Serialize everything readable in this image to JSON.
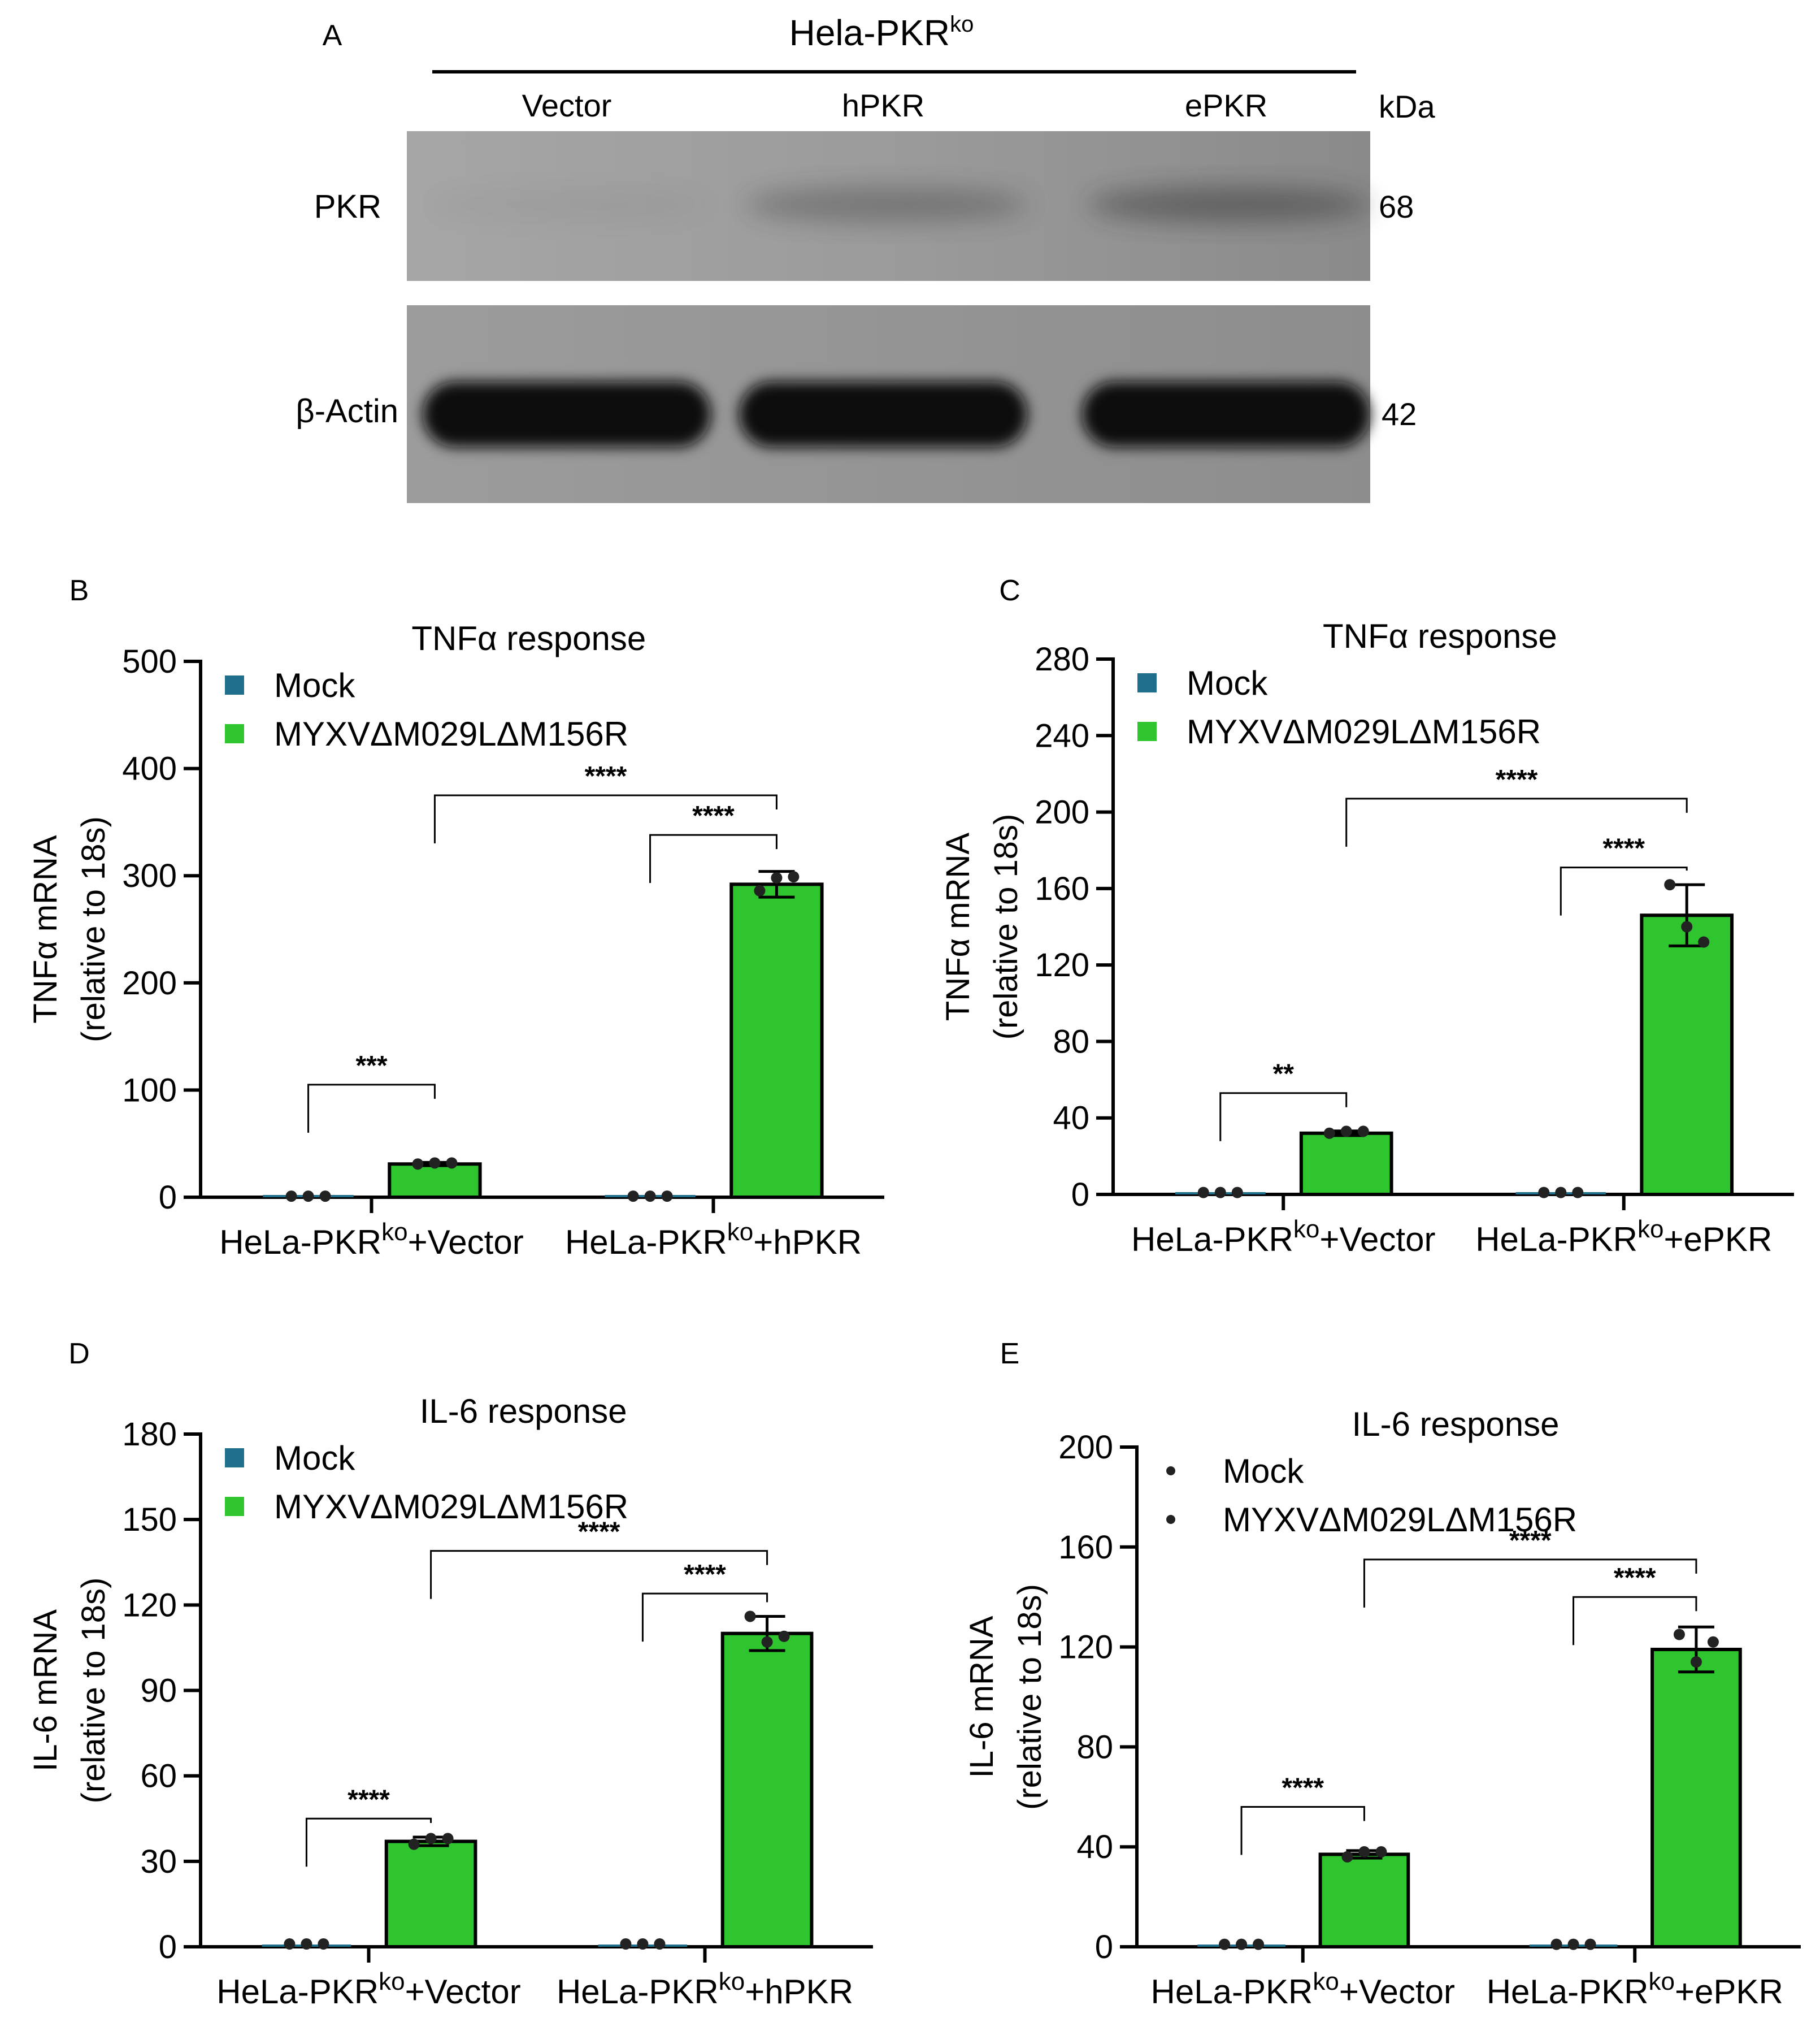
{
  "western_blot": {
    "panel_label": "A",
    "cell_line": "Hela-PKR",
    "cell_line_sup": "ko",
    "lanes": [
      "Vector",
      "hPKR",
      "ePKR"
    ],
    "unit_label": "kDa",
    "rows": [
      {
        "name": "PKR",
        "kda": "68",
        "band_intensity": [
          0.04,
          0.35,
          0.5
        ]
      },
      {
        "name": "β-Actin",
        "kda": "42",
        "band_intensity": [
          1.0,
          1.0,
          1.0
        ]
      }
    ],
    "colors": {
      "membrane": "#9a9a9a",
      "band": "#111111"
    }
  },
  "chart_data": [
    {
      "panel_label": "B",
      "type": "bar",
      "title": "TNFα response",
      "ylabel_line1": "TNFα mRNA",
      "ylabel_line2": "(relative to 18s)",
      "ylim": [
        0,
        500
      ],
      "yticks": [
        0,
        100,
        200,
        300,
        400,
        500
      ],
      "categories": [
        {
          "base": "HeLa-PKR",
          "sup": "ko",
          "suffix": "+Vector"
        },
        {
          "base": "HeLa-PKR",
          "sup": "ko",
          "suffix": "+hPKR"
        }
      ],
      "legend": {
        "style": "square"
      },
      "series": [
        {
          "name": "Mock",
          "color": "#1f6e8c",
          "values": [
            1,
            1
          ],
          "points": [
            [
              1,
              1,
              1
            ],
            [
              1,
              1,
              1
            ]
          ],
          "err": [
            0,
            0
          ]
        },
        {
          "name": "MYXVΔM029LΔM156R",
          "color": "#2ec52e",
          "values": [
            31,
            292
          ],
          "points": [
            [
              31,
              32,
              32
            ],
            [
              286,
              298,
              299
            ]
          ],
          "err": [
            1.5,
            12
          ]
        }
      ],
      "brackets": [
        {
          "from": [
            0,
            0
          ],
          "to": [
            0,
            1
          ],
          "label": "***",
          "y": 105
        },
        {
          "from": [
            1,
            0
          ],
          "to": [
            1,
            1
          ],
          "label": "****",
          "y": 338
        },
        {
          "from": [
            0,
            1
          ],
          "to": [
            1,
            1
          ],
          "label": "****",
          "y": 375
        }
      ]
    },
    {
      "panel_label": "C",
      "type": "bar",
      "title": "TNFα response",
      "ylabel_line1": "TNFα mRNA",
      "ylabel_line2": "(relative to 18s)",
      "ylim": [
        0,
        280
      ],
      "yticks": [
        0,
        40,
        80,
        120,
        160,
        200,
        240,
        280
      ],
      "categories": [
        {
          "base": "HeLa-PKR",
          "sup": "ko",
          "suffix": "+Vector"
        },
        {
          "base": "HeLa-PKR",
          "sup": "ko",
          "suffix": "+ePKR"
        }
      ],
      "legend": {
        "style": "square"
      },
      "series": [
        {
          "name": "Mock",
          "color": "#1f6e8c",
          "values": [
            1,
            1
          ],
          "points": [
            [
              1,
              1,
              1
            ],
            [
              1,
              1,
              1
            ]
          ],
          "err": [
            0,
            0
          ]
        },
        {
          "name": "MYXVΔM029LΔM156R",
          "color": "#2ec52e",
          "values": [
            32,
            146
          ],
          "points": [
            [
              32,
              33,
              33
            ],
            [
              162,
              140,
              132
            ]
          ],
          "err": [
            1.2,
            16
          ]
        }
      ],
      "brackets": [
        {
          "from": [
            0,
            0
          ],
          "to": [
            0,
            1
          ],
          "label": "**",
          "y": 53
        },
        {
          "from": [
            1,
            0
          ],
          "to": [
            1,
            1
          ],
          "label": "****",
          "y": 171
        },
        {
          "from": [
            0,
            1
          ],
          "to": [
            1,
            1
          ],
          "label": "****",
          "y": 207
        }
      ]
    },
    {
      "panel_label": "D",
      "type": "bar",
      "title": "IL-6 response",
      "ylabel_line1": "IL-6 mRNA",
      "ylabel_line2": "(relative to 18s)",
      "ylim": [
        0,
        180
      ],
      "yticks": [
        0,
        30,
        60,
        90,
        120,
        150,
        180
      ],
      "categories": [
        {
          "base": "HeLa-PKR",
          "sup": "ko",
          "suffix": "+Vector"
        },
        {
          "base": "HeLa-PKR",
          "sup": "ko",
          "suffix": "+hPKR"
        }
      ],
      "legend": {
        "style": "square"
      },
      "series": [
        {
          "name": "Mock",
          "color": "#1f6e8c",
          "values": [
            1,
            1
          ],
          "points": [
            [
              1,
              1,
              1
            ],
            [
              1,
              1,
              1
            ]
          ],
          "err": [
            0,
            0
          ]
        },
        {
          "name": "MYXVΔM029LΔM156R",
          "color": "#2ec52e",
          "values": [
            37,
            110
          ],
          "points": [
            [
              36,
              38,
              38
            ],
            [
              116,
              107,
              109
            ]
          ],
          "err": [
            1.5,
            6
          ]
        }
      ],
      "brackets": [
        {
          "from": [
            0,
            0
          ],
          "to": [
            0,
            1
          ],
          "label": "****",
          "y": 45
        },
        {
          "from": [
            1,
            0
          ],
          "to": [
            1,
            1
          ],
          "label": "****",
          "y": 124
        },
        {
          "from": [
            0,
            1
          ],
          "to": [
            1,
            1
          ],
          "label": "****",
          "y": 139
        }
      ]
    },
    {
      "panel_label": "E",
      "type": "bar",
      "title": "IL-6 response",
      "ylabel_line1": "IL-6 mRNA",
      "ylabel_line2": "(relative to 18s)",
      "ylim": [
        0,
        200
      ],
      "yticks": [
        0,
        40,
        80,
        120,
        160,
        200
      ],
      "categories": [
        {
          "base": "HeLa-PKR",
          "sup": "ko",
          "suffix": "+Vector"
        },
        {
          "base": "HeLa-PKR",
          "sup": "ko",
          "suffix": "+ePKR"
        }
      ],
      "legend": {
        "style": "dot"
      },
      "series": [
        {
          "name": "Mock",
          "color": "#1f6e8c",
          "values": [
            1,
            1
          ],
          "points": [
            [
              1,
              1,
              1
            ],
            [
              1,
              1,
              1
            ]
          ],
          "err": [
            0,
            0
          ]
        },
        {
          "name": "MYXVΔM029LΔM156R",
          "color": "#2ec52e",
          "values": [
            37,
            119
          ],
          "points": [
            [
              36,
              38,
              38
            ],
            [
              125,
              114,
              122
            ]
          ],
          "err": [
            1.5,
            9
          ]
        }
      ],
      "brackets": [
        {
          "from": [
            0,
            0
          ],
          "to": [
            0,
            1
          ],
          "label": "****",
          "y": 56
        },
        {
          "from": [
            1,
            0
          ],
          "to": [
            1,
            1
          ],
          "label": "****",
          "y": 140
        },
        {
          "from": [
            0,
            1
          ],
          "to": [
            1,
            1
          ],
          "label": "****",
          "y": 155
        }
      ]
    }
  ]
}
